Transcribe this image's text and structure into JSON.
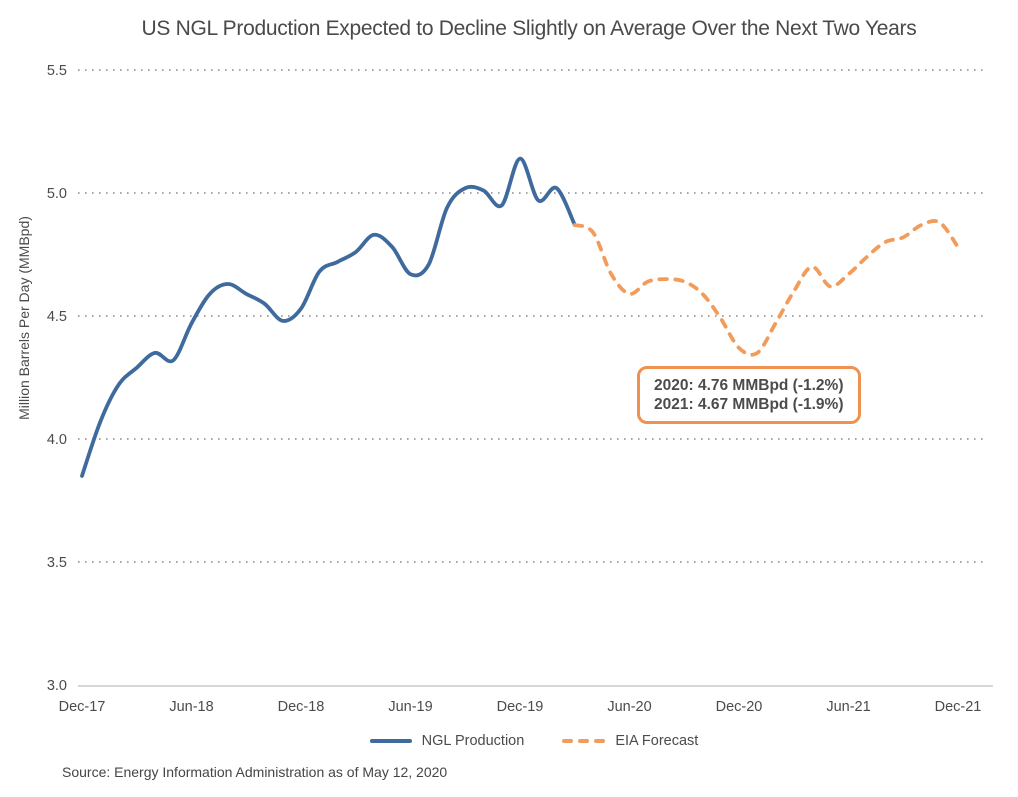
{
  "source_note": "Source: Energy Information Administration as of May 12, 2020",
  "colors": {
    "grid": "#757575",
    "axis_line": "#c9c9c9",
    "tick_text": "#4b4b4b",
    "title_text": "#4a4a4a",
    "annotation_text": "#4c4c4c",
    "actual_line": "#3f6a9e",
    "forecast_line": "#f29c5b",
    "annotation_border": "#ef9150"
  },
  "chart_data": {
    "type": "line",
    "title": "US NGL Production Expected to Decline Slightly on Average Over the Next Two Years",
    "xlabel": "",
    "ylabel": "Million Barrels Per Day (MMBpd)",
    "ylim": [
      3.0,
      5.5
    ],
    "ytick_values": [
      5.5,
      5.0,
      4.5,
      4.0,
      3.5,
      3.0
    ],
    "xtick_labels": [
      "Dec-17",
      "Jun-18",
      "Dec-18",
      "Jun-19",
      "Dec-19",
      "Jun-20",
      "Dec-20",
      "Jun-21",
      "Dec-21"
    ],
    "xtick_months": [
      0,
      6,
      12,
      18,
      24,
      30,
      36,
      42,
      48
    ],
    "x_unit": "months since Dec-2017",
    "grid": "horizontal dotted",
    "legend_position": "bottom center",
    "series": [
      {
        "name": "NGL Production",
        "style": "solid",
        "color": "#3f6a9e",
        "months": [
          0,
          1,
          2,
          3,
          4,
          5,
          6,
          7,
          8,
          9,
          10,
          11,
          12,
          13,
          14,
          15,
          16,
          17,
          18,
          19,
          20,
          21,
          22,
          23,
          24,
          25,
          26,
          27
        ],
        "values": [
          3.85,
          4.07,
          4.22,
          4.29,
          4.35,
          4.32,
          4.47,
          4.59,
          4.63,
          4.59,
          4.55,
          4.48,
          4.53,
          4.68,
          4.72,
          4.76,
          4.83,
          4.78,
          4.67,
          4.71,
          4.94,
          5.02,
          5.01,
          4.95,
          5.14,
          4.97,
          5.02,
          4.87
        ]
      },
      {
        "name": "EIA Forecast",
        "style": "dashed",
        "color": "#f29c5b",
        "months": [
          27,
          28,
          29,
          30,
          31,
          32,
          33,
          34,
          35,
          36,
          37,
          38,
          39,
          40,
          41,
          42,
          43,
          44,
          45,
          46,
          47,
          48
        ],
        "values": [
          4.87,
          4.84,
          4.67,
          4.59,
          4.64,
          4.65,
          4.64,
          4.59,
          4.49,
          4.37,
          4.35,
          4.47,
          4.6,
          4.7,
          4.62,
          4.67,
          4.74,
          4.8,
          4.82,
          4.87,
          4.88,
          4.78
        ]
      }
    ],
    "annotation": {
      "lines": [
        "2020: 4.76 MMBpd (-1.2%)",
        "2021: 4.67 MMBpd (-1.9%)"
      ],
      "border_color": "#ef9150"
    }
  }
}
